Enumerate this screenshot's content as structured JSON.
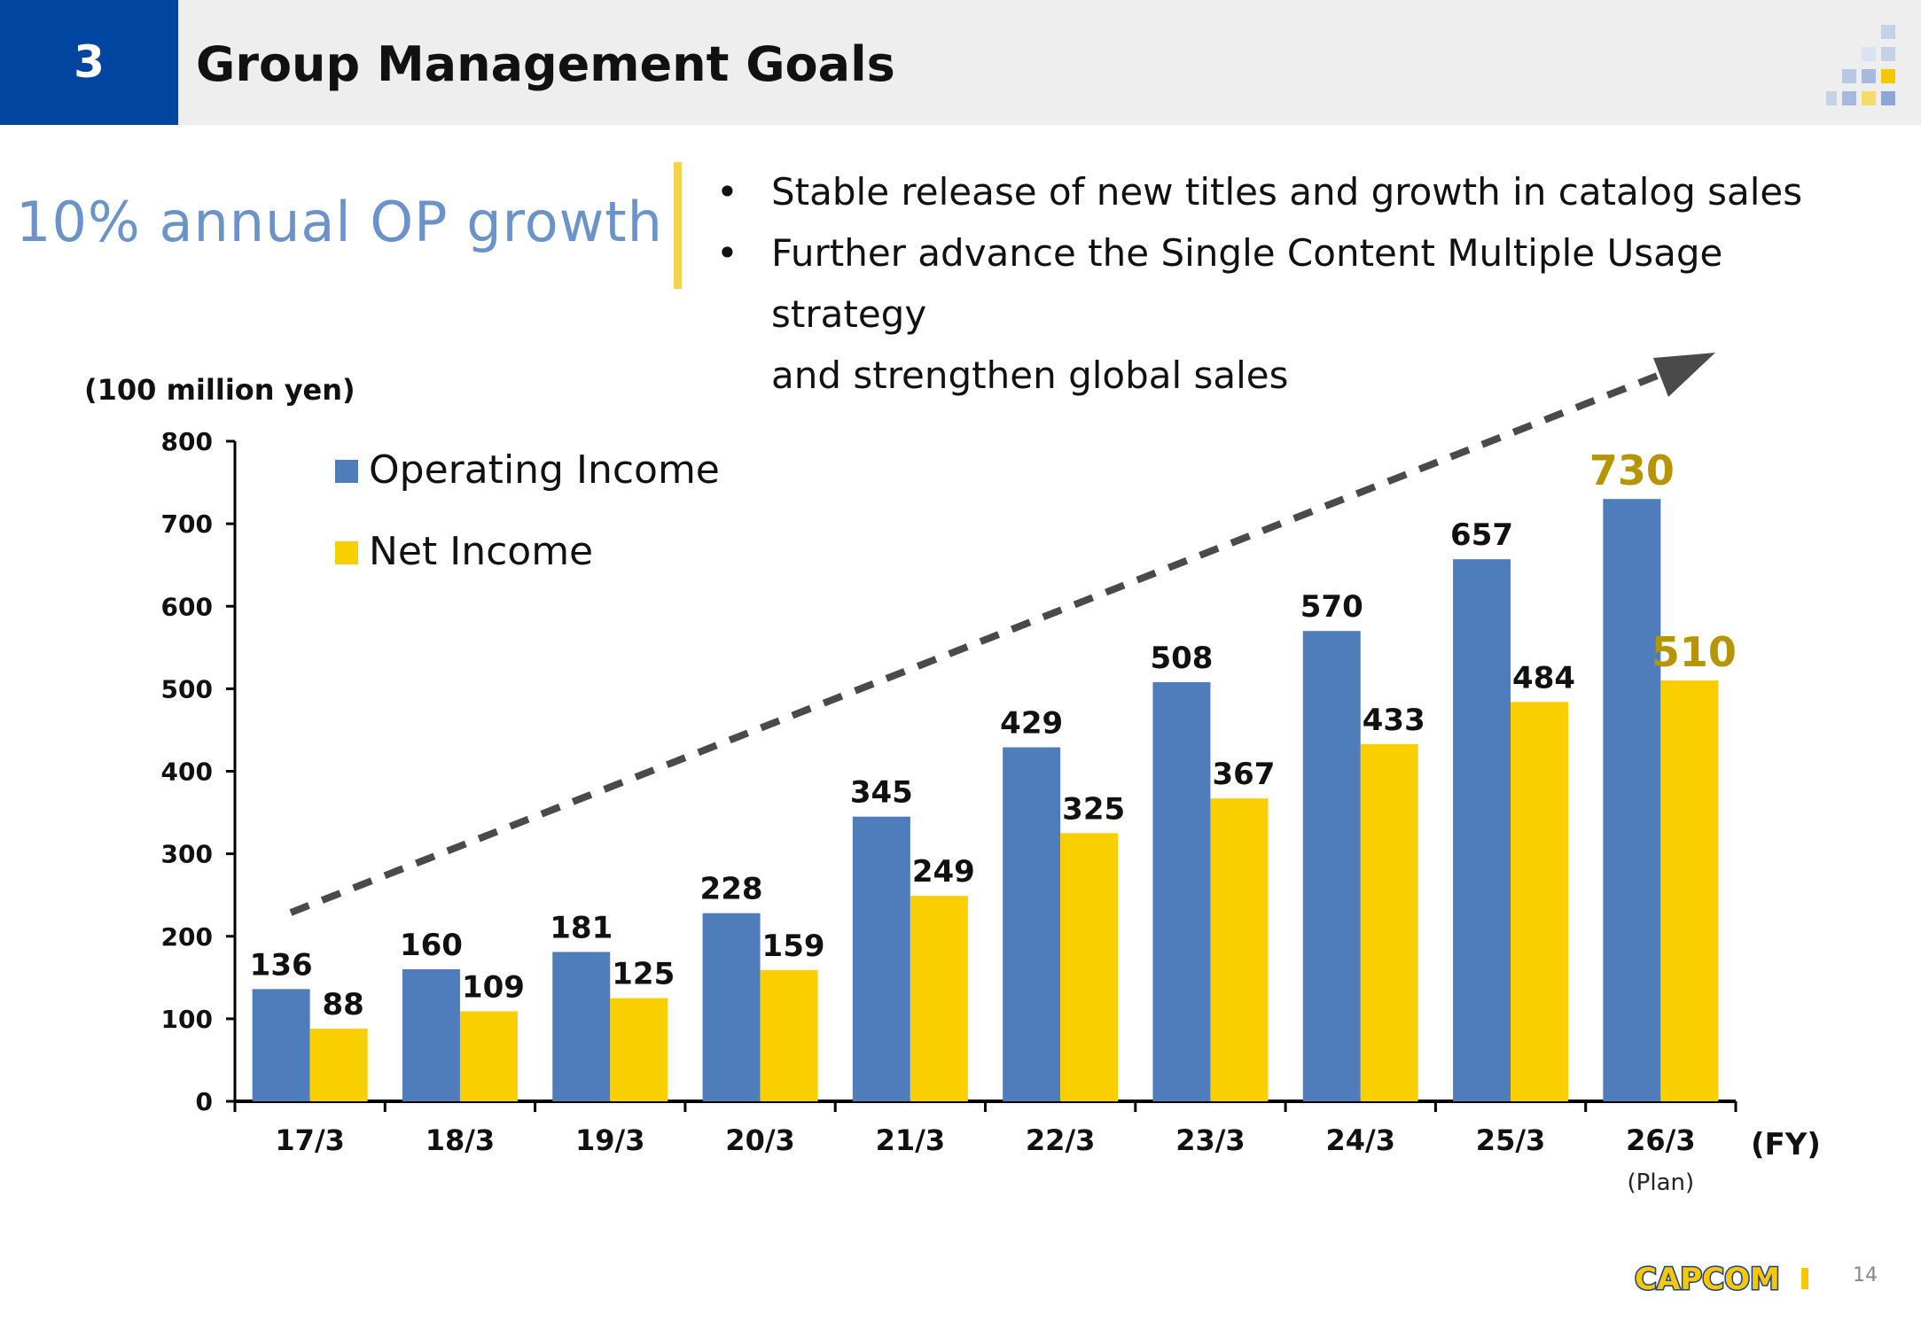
{
  "header": {
    "section_number": "3",
    "title": "Group Management Goals"
  },
  "tagline": "10% annual OP growth",
  "bullets": [
    "Stable release of new titles and growth in catalog sales",
    "Further advance the Single Content Multiple Usage strategy and strengthen global sales"
  ],
  "bullet_line3": "and strengthen global sales",
  "bullet_line2": "Further advance the Single Content Multiple Usage strategy",
  "bullet_marker": "•",
  "chart_data": {
    "type": "bar",
    "ylabel": "(100 million yen)",
    "xlabel": "(FY)",
    "ylim": [
      0,
      800
    ],
    "yticks": [
      0,
      100,
      200,
      300,
      400,
      500,
      600,
      700,
      800
    ],
    "categories": [
      "17/3",
      "18/3",
      "19/3",
      "20/3",
      "21/3",
      "22/3",
      "23/3",
      "24/3",
      "25/3",
      "26/3"
    ],
    "category_note": {
      "index": 9,
      "text": "(Plan)"
    },
    "series": [
      {
        "name": "Operating Income",
        "color": "#4f7dbb",
        "values": [
          136,
          160,
          181,
          228,
          345,
          429,
          508,
          570,
          657,
          730
        ]
      },
      {
        "name": "Net Income",
        "color": "#f9cf00",
        "values": [
          88,
          109,
          125,
          159,
          249,
          325,
          367,
          433,
          484,
          510
        ]
      }
    ],
    "highlight_label_color": "#b69500",
    "legend_position": "top-left",
    "trend_arrow": "dashed"
  },
  "footer": {
    "logo_text": "CAPCOM",
    "page_number": "14",
    "colors": {
      "logo_fill": "#f6c800",
      "logo_outline": "#1b3f8b"
    }
  }
}
